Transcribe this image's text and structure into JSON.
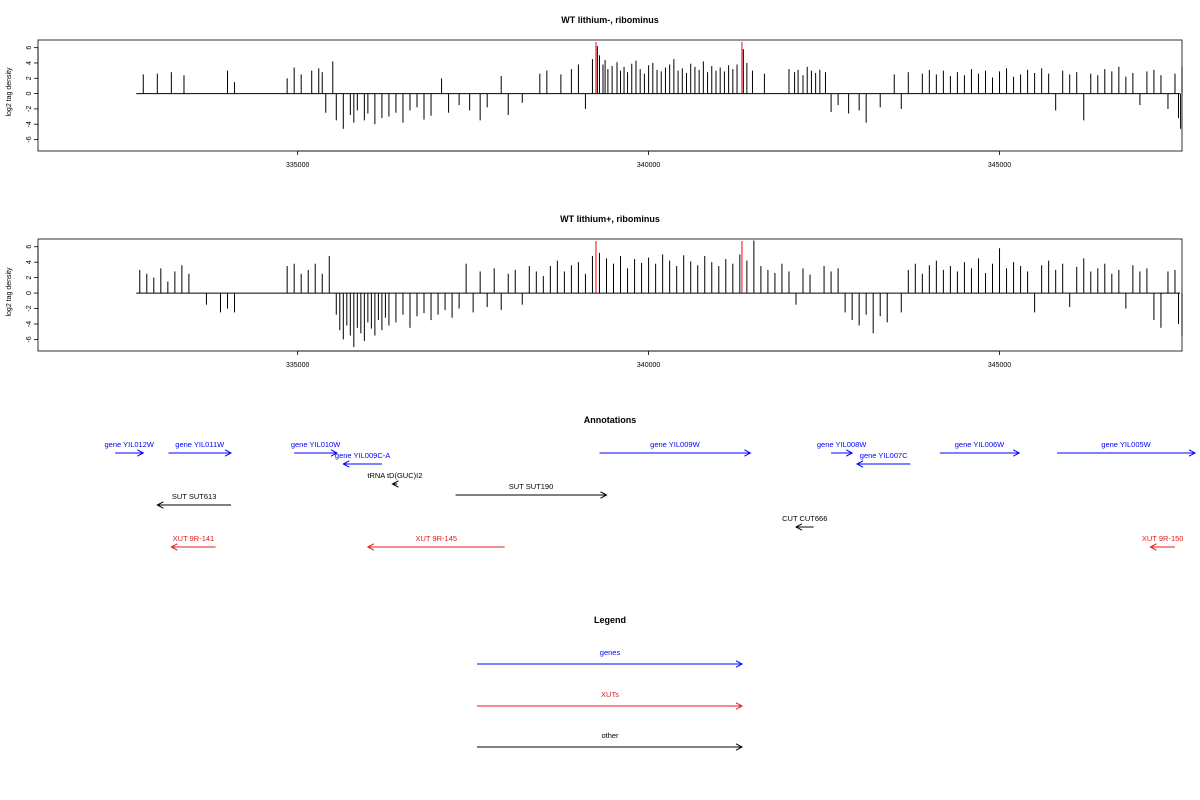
{
  "colors": {
    "gene": "#0000ff",
    "xut": "#e41a1c",
    "other": "#000000",
    "feature": "#ff0000"
  },
  "chart_data": [
    {
      "type": "bar",
      "title": "WT lithium-, ribominus",
      "ylabel": "log2 tag density",
      "xlim": [
        331300,
        347600
      ],
      "ylim": [
        -7.5,
        7
      ],
      "xticks": [
        335000,
        340000,
        345000
      ],
      "xtick_labels": [
        "335000",
        "340000",
        "345000"
      ],
      "yticks": [
        -6,
        -4,
        -2,
        0,
        2,
        4,
        6
      ],
      "ytick_labels": [
        "-6",
        "-4",
        "-2",
        "0",
        "2",
        "4",
        "6"
      ],
      "red_markers": [
        339250,
        341330
      ],
      "x": [
        332800,
        333000,
        333200,
        333380,
        334000,
        334100,
        334850,
        334950,
        335050,
        335200,
        335300,
        335350,
        335400,
        335500,
        335550,
        335650,
        335750,
        335800,
        335850,
        335950,
        336000,
        336100,
        336200,
        336300,
        336400,
        336500,
        336600,
        336700,
        336800,
        336900,
        337050,
        337150,
        337300,
        337450,
        337600,
        337700,
        337900,
        338000,
        338200,
        338450,
        338550,
        338750,
        338900,
        339000,
        339100,
        339200,
        339270,
        339300,
        339350,
        339380,
        339420,
        339480,
        339550,
        339600,
        339650,
        339700,
        339760,
        339820,
        339880,
        339940,
        340000,
        340060,
        340120,
        340180,
        340240,
        340300,
        340360,
        340420,
        340480,
        340540,
        340600,
        340660,
        340720,
        340780,
        340840,
        340900,
        340960,
        341020,
        341080,
        341140,
        341200,
        341260,
        341350,
        341400,
        341480,
        341650,
        342000,
        342080,
        342130,
        342200,
        342260,
        342320,
        342380,
        342440,
        342520,
        342600,
        342700,
        342850,
        343000,
        343100,
        343300,
        343500,
        343600,
        343700,
        343900,
        344000,
        344100,
        344200,
        344300,
        344400,
        344500,
        344600,
        344700,
        344800,
        344900,
        345000,
        345100,
        345200,
        345300,
        345400,
        345500,
        345600,
        345700,
        345800,
        345900,
        346000,
        346100,
        346200,
        346300,
        346400,
        346500,
        346600,
        346700,
        346800,
        346900,
        347000,
        347100,
        347200,
        347300,
        347400,
        347500,
        347550,
        347580,
        347600
      ],
      "values": [
        2.5,
        2.6,
        2.8,
        2.4,
        3.0,
        1.5,
        2.0,
        3.4,
        2.5,
        3.0,
        3.3,
        2.8,
        -2.5,
        4.2,
        -3.5,
        -4.6,
        -2.8,
        -3.8,
        -2.2,
        -3.5,
        -2.6,
        -4.0,
        -3.2,
        -3.0,
        -2.5,
        -3.8,
        -2.2,
        -1.8,
        -3.4,
        -2.9,
        2.0,
        -2.5,
        -1.5,
        -2.2,
        -3.5,
        -1.8,
        2.3,
        -2.8,
        -1.2,
        2.6,
        3.0,
        2.5,
        3.2,
        3.8,
        -2.0,
        4.5,
        6.2,
        5.0,
        3.8,
        4.4,
        3.2,
        3.6,
        4.1,
        3.0,
        3.5,
        2.8,
        3.9,
        4.3,
        3.2,
        2.6,
        3.7,
        4.0,
        3.1,
        2.9,
        3.4,
        3.8,
        4.5,
        3.0,
        3.3,
        2.7,
        3.9,
        3.5,
        3.1,
        4.2,
        2.8,
        3.6,
        3.0,
        3.4,
        2.9,
        3.7,
        3.2,
        3.8,
        5.8,
        4.0,
        3.0,
        2.6,
        3.2,
        2.8,
        3.1,
        2.4,
        3.5,
        3.0,
        2.7,
        3.1,
        2.8,
        -2.4,
        -1.5,
        -2.6,
        -2.2,
        -3.8,
        -1.8,
        2.5,
        -2.0,
        2.8,
        2.6,
        3.1,
        2.5,
        3.0,
        2.3,
        2.8,
        2.4,
        3.2,
        2.6,
        3.0,
        2.1,
        2.9,
        3.3,
        2.2,
        2.5,
        3.1,
        2.7,
        3.3,
        2.6,
        -2.2,
        3.0,
        2.5,
        2.8,
        -3.5,
        2.6,
        2.4,
        3.2,
        2.9,
        3.5,
        2.2,
        2.7,
        -1.5,
        2.9,
        3.1,
        2.4,
        -2.0,
        2.6,
        -3.2,
        -4.6,
        3.5
      ]
    },
    {
      "type": "bar",
      "title": "WT lithium+, ribominus",
      "ylabel": "log2 tag density",
      "xlim": [
        331300,
        347600
      ],
      "ylim": [
        -7.5,
        7
      ],
      "xticks": [
        335000,
        340000,
        345000
      ],
      "xtick_labels": [
        "335000",
        "340000",
        "345000"
      ],
      "yticks": [
        -6,
        -4,
        -2,
        0,
        2,
        4,
        6
      ],
      "ytick_labels": [
        "-6",
        "-4",
        "-2",
        "0",
        "2",
        "4",
        "6"
      ],
      "red_markers": [
        339250,
        341330
      ],
      "x": [
        332750,
        332850,
        332950,
        333050,
        333150,
        333250,
        333350,
        333450,
        333700,
        333900,
        334000,
        334100,
        334850,
        334950,
        335050,
        335150,
        335250,
        335350,
        335450,
        335550,
        335600,
        335650,
        335700,
        335750,
        335800,
        335850,
        335900,
        335950,
        336000,
        336050,
        336100,
        336150,
        336200,
        336250,
        336300,
        336400,
        336500,
        336600,
        336700,
        336800,
        336900,
        337000,
        337100,
        337200,
        337300,
        337400,
        337500,
        337600,
        337700,
        337800,
        337900,
        338000,
        338100,
        338200,
        338300,
        338400,
        338500,
        338600,
        338700,
        338800,
        338900,
        339000,
        339100,
        339200,
        339300,
        339400,
        339500,
        339600,
        339700,
        339800,
        339900,
        340000,
        340100,
        340200,
        340300,
        340400,
        340500,
        340600,
        340700,
        340800,
        340900,
        341000,
        341100,
        341200,
        341300,
        341400,
        341500,
        341600,
        341700,
        341800,
        341900,
        342000,
        342100,
        342200,
        342300,
        342500,
        342600,
        342700,
        342800,
        342900,
        343000,
        343100,
        343200,
        343300,
        343400,
        343600,
        343700,
        343800,
        343900,
        344000,
        344100,
        344200,
        344300,
        344400,
        344500,
        344600,
        344700,
        344800,
        344900,
        345000,
        345100,
        345200,
        345300,
        345400,
        345500,
        345600,
        345700,
        345800,
        345900,
        346000,
        346100,
        346200,
        346300,
        346400,
        346500,
        346600,
        346700,
        346800,
        346900,
        347000,
        347100,
        347200,
        347300,
        347400,
        347500,
        347550,
        347600
      ],
      "values": [
        3.0,
        2.5,
        2.0,
        3.2,
        1.5,
        2.8,
        3.6,
        2.5,
        -1.5,
        -2.5,
        -2.0,
        -2.5,
        3.5,
        3.8,
        2.5,
        3.0,
        3.8,
        2.5,
        4.8,
        -2.8,
        -4.8,
        -6.0,
        -4.2,
        -5.5,
        -7.0,
        -4.5,
        -5.2,
        -6.2,
        -3.8,
        -4.6,
        -5.5,
        -3.5,
        -4.8,
        -3.2,
        -4.2,
        -3.8,
        -2.8,
        -4.5,
        -3.0,
        -2.6,
        -3.5,
        -2.8,
        -2.2,
        -3.2,
        -2.0,
        3.8,
        -2.5,
        2.8,
        -1.8,
        3.2,
        -2.2,
        2.5,
        3.0,
        -1.5,
        3.5,
        2.8,
        2.2,
        3.5,
        4.2,
        2.8,
        3.6,
        4.0,
        2.5,
        4.8,
        5.2,
        4.5,
        3.8,
        4.8,
        3.2,
        4.4,
        3.9,
        4.6,
        3.8,
        5.0,
        4.2,
        3.5,
        4.9,
        4.1,
        3.6,
        4.8,
        4.0,
        3.5,
        4.4,
        3.8,
        5.0,
        4.2,
        6.8,
        3.5,
        3.0,
        2.6,
        3.8,
        2.8,
        -1.5,
        3.2,
        2.4,
        3.5,
        2.8,
        3.2,
        -2.5,
        -3.5,
        -4.2,
        -2.8,
        -5.2,
        -3.0,
        -3.8,
        -2.5,
        3.0,
        3.8,
        2.5,
        3.6,
        4.2,
        3.0,
        3.5,
        2.8,
        4.0,
        3.2,
        4.5,
        2.6,
        3.8,
        5.8,
        3.2,
        4.0,
        3.5,
        2.8,
        -2.5,
        3.6,
        4.2,
        3.0,
        3.8,
        -1.8,
        3.4,
        4.5,
        2.8,
        3.2,
        3.8,
        2.5,
        3.0,
        -2.0,
        3.6,
        2.8,
        3.2,
        -3.5,
        -4.5,
        2.8,
        3.0,
        -4.0,
        -5.5
      ]
    }
  ],
  "annotations": {
    "title": "Annotations",
    "items": [
      {
        "label": "gene YIL012W",
        "kind": "gene",
        "start": 332400,
        "end": 332800,
        "strand": "+",
        "row": 0
      },
      {
        "label": "gene YIL011W",
        "kind": "gene",
        "start": 333160,
        "end": 334050,
        "strand": "+",
        "row": 0
      },
      {
        "label": "gene YIL010W",
        "kind": "gene",
        "start": 334950,
        "end": 335560,
        "strand": "+",
        "row": 0
      },
      {
        "label": "gene YIL009C-A",
        "kind": "gene",
        "start": 335650,
        "end": 336200,
        "strand": "-",
        "row": 1
      },
      {
        "label": "tRNA tD(GUC)I2",
        "kind": "other",
        "start": 336350,
        "end": 336420,
        "strand": "-",
        "row": 2
      },
      {
        "label": "SUT SUT190",
        "kind": "other",
        "start": 337250,
        "end": 339400,
        "strand": "+",
        "row": 3
      },
      {
        "label": "SUT SUT613",
        "kind": "other",
        "start": 333000,
        "end": 334050,
        "strand": "-",
        "row": 4
      },
      {
        "label": "gene YIL009W",
        "kind": "gene",
        "start": 339300,
        "end": 341450,
        "strand": "+",
        "row": 0
      },
      {
        "label": "gene YIL008W",
        "kind": "gene",
        "start": 342600,
        "end": 342900,
        "strand": "+",
        "row": 0
      },
      {
        "label": "gene YIL007C",
        "kind": "gene",
        "start": 342970,
        "end": 343730,
        "strand": "-",
        "row": 1
      },
      {
        "label": "gene YIL006W",
        "kind": "gene",
        "start": 344150,
        "end": 345280,
        "strand": "+",
        "row": 0
      },
      {
        "label": "gene YIL005W",
        "kind": "gene",
        "start": 345820,
        "end": 347950,
        "strand": "+",
        "row": 0
      },
      {
        "label": "CUT CUT666",
        "kind": "other",
        "start": 342100,
        "end": 342350,
        "strand": "-",
        "row": 5
      },
      {
        "label": "XUT 9R-141",
        "kind": "xut",
        "start": 333200,
        "end": 333830,
        "strand": "-",
        "row": 6
      },
      {
        "label": "XUT 9R-145",
        "kind": "xut",
        "start": 336000,
        "end": 337950,
        "strand": "-",
        "row": 6
      },
      {
        "label": "XUT 9R-150",
        "kind": "xut",
        "start": 347150,
        "end": 347500,
        "strand": "-",
        "row": 6
      }
    ]
  },
  "legend": {
    "title": "Legend",
    "items": [
      {
        "label": "genes",
        "kind": "gene"
      },
      {
        "label": "XUTs",
        "kind": "xut"
      },
      {
        "label": "other",
        "kind": "other"
      }
    ]
  }
}
